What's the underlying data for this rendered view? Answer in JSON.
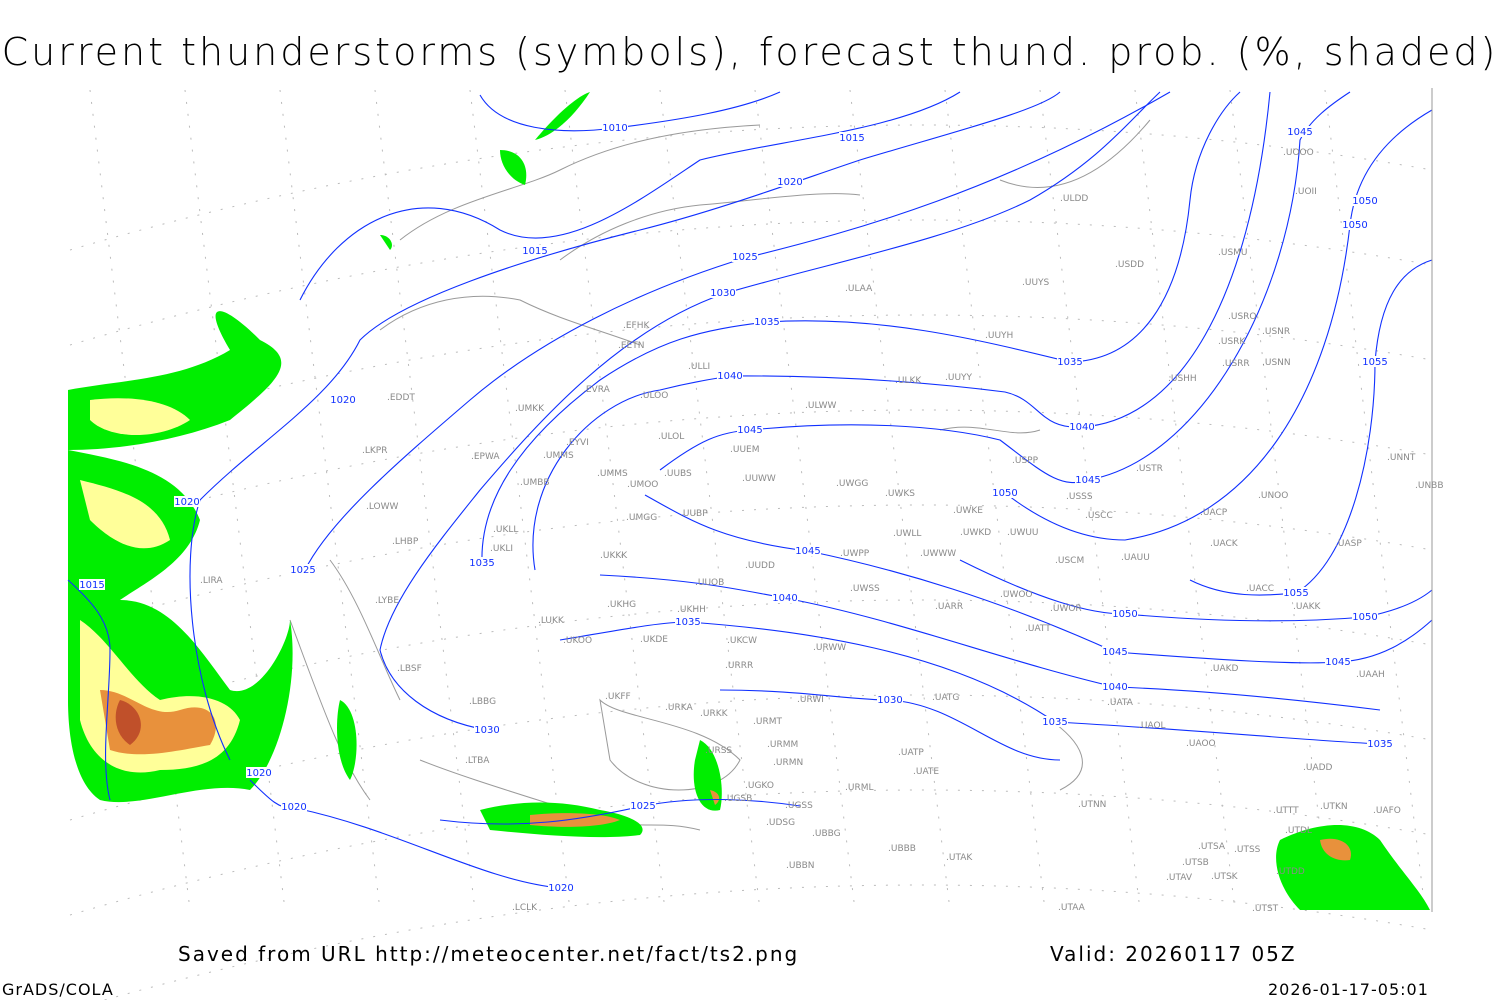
{
  "title": "Current thunderstorms (symbols), forecast thund. prob. (%, shaded)",
  "footer": {
    "source": "Saved from URL http://meteocenter.net/fact/ts2.png",
    "valid": "Valid: 20260117 05Z",
    "software": "GrADS/COLA",
    "timestamp": "2026-01-17-05:01"
  },
  "colors": {
    "isobar": "#1030ff",
    "coast": "#9a9a9a",
    "prob_low": "#00ee00",
    "prob_mid": "#ffff99",
    "prob_high": "#e8913c",
    "prob_max": "#c0502a"
  },
  "isobars": [
    {
      "value": "1010"
    },
    {
      "value": "1015"
    },
    {
      "value": "1020"
    },
    {
      "value": "1025"
    },
    {
      "value": "1030"
    },
    {
      "value": "1035"
    },
    {
      "value": "1040"
    },
    {
      "value": "1045"
    },
    {
      "value": "1050"
    },
    {
      "value": "1055"
    }
  ],
  "stations": [
    "ULDD",
    "USDD",
    "USMU",
    "UUYS",
    "ULAA",
    "UOII",
    "UOOO",
    "USRO",
    "USRK",
    "USNR",
    "USRR",
    "USNN",
    "UUYH",
    "USHH",
    "UUYY",
    "ULKK",
    "EFHK",
    "EETN",
    "ULLI",
    "EVRA",
    "ULOO",
    "ULWW",
    "ULOL",
    "UUEM",
    "UMKK",
    "EYVI",
    "UMMS",
    "UMMS",
    "EPWA",
    "UMBB",
    "UMOO",
    "UUBS",
    "UUWW",
    "UWGG",
    "UWKS",
    "UWKE",
    "UWKD",
    "UWUU",
    "USSS",
    "USTR",
    "USPP",
    "UNOO",
    "UNNT",
    "UNBB",
    "USCC",
    "UACP",
    "UACK",
    "UASP",
    "UAUU",
    "USCM",
    "UWLL",
    "UWWW",
    "UWPP",
    "UUDD",
    "UUOB",
    "UKKK",
    "UMGG",
    "UUBP",
    "UKLL",
    "UKLI",
    "LOWW",
    "LKPR",
    "LHBP",
    "EDDT",
    "LIRA",
    "LYBE",
    "LBSF",
    "LUKK",
    "UKHH",
    "UKHG",
    "UKDE",
    "UKOO",
    "UKCW",
    "URWW",
    "UWSS",
    "UARR",
    "URRR",
    "UATT",
    "UWOO",
    "UWOR",
    "UACC",
    "UAKK",
    "UAKD",
    "UAAH",
    "UATG",
    "URWI",
    "URKA",
    "URKK",
    "UKFF",
    "LBBG",
    "LTBA",
    "URMT",
    "UATA",
    "UAOL",
    "UAOO",
    "UADD",
    "URMM",
    "URSS",
    "URMN",
    "UATE",
    "UATP",
    "URML",
    "UGSB",
    "UGKO",
    "UGSS",
    "UTNN",
    "UTTT",
    "UTKN",
    "UAFO",
    "UTDL",
    "UDSG",
    "UBBG",
    "UBBB",
    "UBBN",
    "UTAK",
    "UTSA",
    "UTSS",
    "UTSB",
    "UTAV",
    "UTSK",
    "UTDD",
    "UTAA",
    "UTST",
    "LCLK"
  ]
}
